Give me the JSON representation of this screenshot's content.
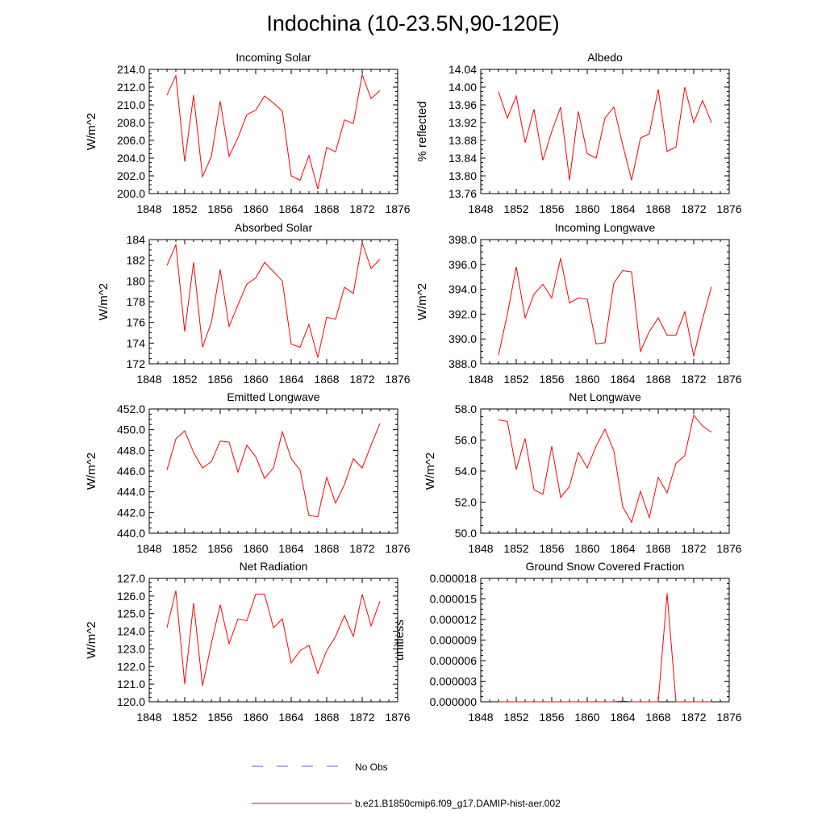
{
  "title": "Indochina (10-23.5N,90-120E)",
  "legend": {
    "items": [
      {
        "label": "No Obs",
        "color": "#5b5bd6",
        "style": "dashed"
      },
      {
        "label": "b.e21.B1850cmip6.f09_g17.DAMIP-hist-aer.002",
        "color": "#ff0000",
        "style": "solid"
      }
    ]
  },
  "chart_data": [
    {
      "type": "line",
      "title": "Incoming Solar",
      "xlabel": "",
      "ylabel": "W/m^2",
      "xlim": [
        1848,
        1876
      ],
      "ylim": [
        200,
        214
      ],
      "grid": false,
      "xticks": [
        "1848",
        "1852",
        "1856",
        "1860",
        "1864",
        "1868",
        "1872",
        "1876"
      ],
      "yticks": [
        "200.0",
        "202.0",
        "204.0",
        "206.0",
        "208.0",
        "210.0",
        "212.0",
        "214.0"
      ],
      "x": [
        1850,
        1851,
        1852,
        1853,
        1854,
        1855,
        1856,
        1857,
        1858,
        1859,
        1860,
        1861,
        1862,
        1863,
        1864,
        1865,
        1866,
        1867,
        1868,
        1869,
        1870,
        1871,
        1872,
        1873,
        1874
      ],
      "series": [
        {
          "name": "b.e21.B1850cmip6.f09_g17.DAMIP-hist-aer.002",
          "color": "#ff0000",
          "values": [
            211.1,
            213.3,
            203.6,
            211.1,
            201.9,
            204.2,
            210.4,
            204.2,
            206.3,
            208.9,
            209.4,
            211.0,
            210.2,
            209.3,
            202.0,
            201.5,
            204.3,
            200.5,
            205.2,
            204.7,
            208.3,
            207.9,
            213.4,
            210.7,
            211.6
          ]
        }
      ]
    },
    {
      "type": "line",
      "title": "Albedo",
      "xlabel": "",
      "ylabel": "% reflected",
      "xlim": [
        1848,
        1876
      ],
      "ylim": [
        13.76,
        14.04
      ],
      "grid": false,
      "xticks": [
        "1848",
        "1852",
        "1856",
        "1860",
        "1864",
        "1868",
        "1872",
        "1876"
      ],
      "yticks": [
        "13.76",
        "13.80",
        "13.84",
        "13.88",
        "13.92",
        "13.96",
        "14.00",
        "14.04"
      ],
      "x": [
        1850,
        1851,
        1852,
        1853,
        1854,
        1855,
        1856,
        1857,
        1858,
        1859,
        1860,
        1861,
        1862,
        1863,
        1864,
        1865,
        1866,
        1867,
        1868,
        1869,
        1870,
        1871,
        1872,
        1873,
        1874
      ],
      "series": [
        {
          "name": "b.e21.B1850cmip6.f09_g17.DAMIP-hist-aer.002",
          "color": "#ff0000",
          "values": [
            13.99,
            13.93,
            13.98,
            13.875,
            13.95,
            13.835,
            13.9,
            13.955,
            13.79,
            13.945,
            13.85,
            13.84,
            13.93,
            13.955,
            13.87,
            13.79,
            13.885,
            13.895,
            13.995,
            13.855,
            13.865,
            14.0,
            13.92,
            13.97,
            13.92
          ]
        }
      ]
    },
    {
      "type": "line",
      "title": "Absorbed Solar",
      "xlabel": "",
      "ylabel": "W/m^2",
      "xlim": [
        1848,
        1876
      ],
      "ylim": [
        172,
        184
      ],
      "grid": false,
      "xticks": [
        "1848",
        "1852",
        "1856",
        "1860",
        "1864",
        "1868",
        "1872",
        "1876"
      ],
      "yticks": [
        "172",
        "174",
        "176",
        "178",
        "180",
        "182",
        "184"
      ],
      "x": [
        1850,
        1851,
        1852,
        1853,
        1854,
        1855,
        1856,
        1857,
        1858,
        1859,
        1860,
        1861,
        1862,
        1863,
        1864,
        1865,
        1866,
        1867,
        1868,
        1869,
        1870,
        1871,
        1872,
        1873,
        1874
      ],
      "series": [
        {
          "name": "b.e21.B1850cmip6.f09_g17.DAMIP-hist-aer.002",
          "color": "#ff0000",
          "values": [
            181.5,
            183.5,
            175.1,
            181.8,
            173.6,
            176.0,
            181.1,
            175.6,
            177.7,
            179.7,
            180.3,
            181.8,
            180.9,
            180.0,
            173.9,
            173.6,
            175.8,
            172.6,
            176.5,
            176.3,
            179.4,
            178.8,
            183.7,
            181.2,
            182.1
          ]
        }
      ]
    },
    {
      "type": "line",
      "title": "Incoming Longwave",
      "xlabel": "",
      "ylabel": "W/m^2",
      "xlim": [
        1848,
        1876
      ],
      "ylim": [
        388,
        398
      ],
      "grid": false,
      "xticks": [
        "1848",
        "1852",
        "1856",
        "1860",
        "1864",
        "1868",
        "1872",
        "1876"
      ],
      "yticks": [
        "388.0",
        "390.0",
        "392.0",
        "394.0",
        "396.0",
        "398.0"
      ],
      "x": [
        1850,
        1851,
        1852,
        1853,
        1854,
        1855,
        1856,
        1857,
        1858,
        1859,
        1860,
        1861,
        1862,
        1863,
        1864,
        1865,
        1866,
        1867,
        1868,
        1869,
        1870,
        1871,
        1872,
        1873,
        1874
      ],
      "series": [
        {
          "name": "b.e21.B1850cmip6.f09_g17.DAMIP-hist-aer.002",
          "color": "#ff0000",
          "values": [
            388.7,
            392.0,
            395.8,
            391.7,
            393.6,
            394.4,
            393.3,
            396.5,
            392.9,
            393.3,
            393.2,
            389.6,
            389.7,
            394.5,
            395.5,
            395.4,
            389.0,
            390.6,
            391.7,
            390.3,
            390.3,
            392.2,
            388.6,
            391.6,
            394.2
          ]
        }
      ]
    },
    {
      "type": "line",
      "title": "Emitted Longwave",
      "xlabel": "",
      "ylabel": "W/m^2",
      "xlim": [
        1848,
        1876
      ],
      "ylim": [
        440,
        452
      ],
      "grid": false,
      "xticks": [
        "1848",
        "1852",
        "1856",
        "1860",
        "1864",
        "1868",
        "1872",
        "1876"
      ],
      "yticks": [
        "440.0",
        "442.0",
        "444.0",
        "446.0",
        "448.0",
        "450.0",
        "452.0"
      ],
      "x": [
        1850,
        1851,
        1852,
        1853,
        1854,
        1855,
        1856,
        1857,
        1858,
        1859,
        1860,
        1861,
        1862,
        1863,
        1864,
        1865,
        1866,
        1867,
        1868,
        1869,
        1870,
        1871,
        1872,
        1873,
        1874
      ],
      "series": [
        {
          "name": "b.e21.B1850cmip6.f09_g17.DAMIP-hist-aer.002",
          "color": "#ff0000",
          "values": [
            446.1,
            449.1,
            449.9,
            447.8,
            446.3,
            446.9,
            448.9,
            448.8,
            445.9,
            448.5,
            447.4,
            445.3,
            446.3,
            449.8,
            447.2,
            446.1,
            441.7,
            441.6,
            445.4,
            442.9,
            444.7,
            447.2,
            446.3,
            448.5,
            450.6
          ]
        }
      ]
    },
    {
      "type": "line",
      "title": "Net Longwave",
      "xlabel": "",
      "ylabel": "W/m^2",
      "xlim": [
        1848,
        1876
      ],
      "ylim": [
        50,
        58
      ],
      "grid": false,
      "xticks": [
        "1848",
        "1852",
        "1856",
        "1860",
        "1864",
        "1868",
        "1872",
        "1876"
      ],
      "yticks": [
        "50.0",
        "52.0",
        "54.0",
        "56.0",
        "58.0"
      ],
      "x": [
        1850,
        1851,
        1852,
        1853,
        1854,
        1855,
        1856,
        1857,
        1858,
        1859,
        1860,
        1861,
        1862,
        1863,
        1864,
        1865,
        1866,
        1867,
        1868,
        1869,
        1870,
        1871,
        1872,
        1873,
        1874
      ],
      "series": [
        {
          "name": "b.e21.B1850cmip6.f09_g17.DAMIP-hist-aer.002",
          "color": "#ff0000",
          "values": [
            57.3,
            57.2,
            54.1,
            56.1,
            52.8,
            52.5,
            55.6,
            52.3,
            53.0,
            55.2,
            54.2,
            55.6,
            56.7,
            55.3,
            51.7,
            50.7,
            52.7,
            51.0,
            53.6,
            52.6,
            54.5,
            55.0,
            57.6,
            56.9,
            56.5
          ]
        }
      ]
    },
    {
      "type": "line",
      "title": "Net Radiation",
      "xlabel": "",
      "ylabel": "W/m^2",
      "xlim": [
        1848,
        1876
      ],
      "ylim": [
        120,
        127
      ],
      "grid": false,
      "xticks": [
        "1848",
        "1852",
        "1856",
        "1860",
        "1864",
        "1868",
        "1872",
        "1876"
      ],
      "yticks": [
        "120.0",
        "121.0",
        "122.0",
        "123.0",
        "124.0",
        "125.0",
        "126.0",
        "127.0"
      ],
      "x": [
        1850,
        1851,
        1852,
        1853,
        1854,
        1855,
        1856,
        1857,
        1858,
        1859,
        1860,
        1861,
        1862,
        1863,
        1864,
        1865,
        1866,
        1867,
        1868,
        1869,
        1870,
        1871,
        1872,
        1873,
        1874
      ],
      "series": [
        {
          "name": "b.e21.B1850cmip6.f09_g17.DAMIP-hist-aer.002",
          "color": "#ff0000",
          "values": [
            124.2,
            126.3,
            121.0,
            125.6,
            120.9,
            123.3,
            125.5,
            123.3,
            124.7,
            124.6,
            126.1,
            126.1,
            124.2,
            124.7,
            122.2,
            122.9,
            123.2,
            121.6,
            122.9,
            123.7,
            124.9,
            123.7,
            126.1,
            124.3,
            125.7
          ]
        }
      ]
    },
    {
      "type": "line",
      "title": "Ground Snow Covered Fraction",
      "xlabel": "",
      "ylabel": "unitless",
      "xlim": [
        1848,
        1876
      ],
      "ylim": [
        0,
        1.8e-05
      ],
      "grid": false,
      "xticks": [
        "1848",
        "1852",
        "1856",
        "1860",
        "1864",
        "1868",
        "1872",
        "1876"
      ],
      "yticks": [
        "0.000000",
        "0.000003",
        "0.000006",
        "0.000009",
        "0.000012",
        "0.000015",
        "0.000018"
      ],
      "x": [
        1850,
        1851,
        1852,
        1853,
        1854,
        1855,
        1856,
        1857,
        1858,
        1859,
        1860,
        1861,
        1862,
        1863,
        1864,
        1865,
        1866,
        1867,
        1868,
        1869,
        1870,
        1871,
        1872,
        1873,
        1874
      ],
      "series": [
        {
          "name": "b.e21.B1850cmip6.f09_g17.DAMIP-hist-aer.002",
          "color": "#ff0000",
          "values": [
            0,
            0,
            0,
            0,
            0,
            0,
            0,
            0,
            0,
            0,
            0,
            0,
            0,
            0,
            1e-07,
            0,
            0,
            0,
            0,
            1.58e-05,
            0,
            0,
            0,
            0,
            0
          ]
        }
      ]
    }
  ]
}
